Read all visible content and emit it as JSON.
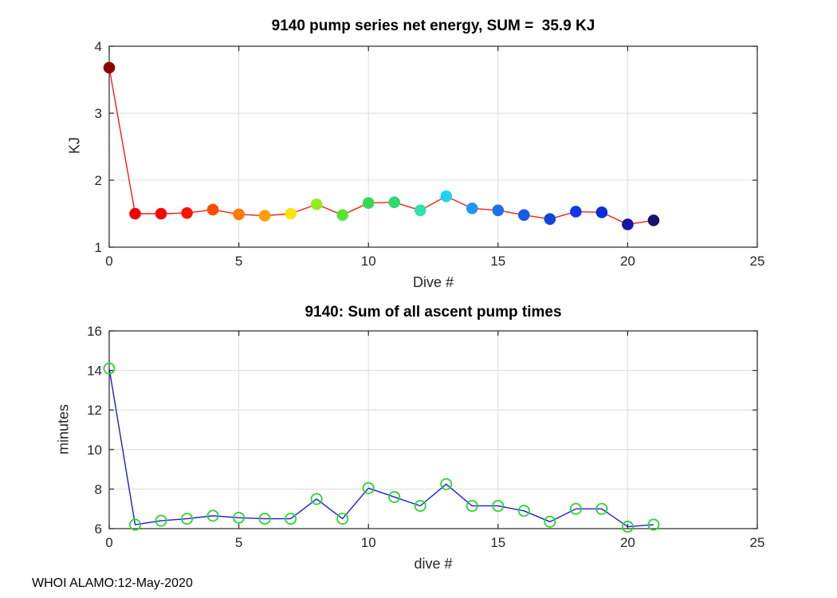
{
  "figure": {
    "background": "#FFFFFF",
    "footer": "WHOI ALAMO:12-May-2020"
  },
  "style": {
    "axis_color": "#262626",
    "grid_color": "#DCDCDC",
    "tick_label_color": "#262626",
    "tick_font_size": 17
  },
  "chart_data": [
    {
      "type": "line",
      "title": "9140 pump series net energy, SUM =  35.9 KJ",
      "xlabel": "Dive #",
      "ylabel": "KJ",
      "xlim": [
        0,
        25
      ],
      "ylim": [
        1,
        4
      ],
      "xticks": [
        0,
        5,
        10,
        15,
        20,
        25
      ],
      "yticks": [
        1,
        2,
        3,
        4
      ],
      "grid": true,
      "legend": "none",
      "x": [
        0,
        1,
        2,
        3,
        4,
        5,
        6,
        7,
        8,
        9,
        10,
        11,
        12,
        13,
        14,
        15,
        16,
        17,
        18,
        19,
        20,
        21
      ],
      "values": [
        3.68,
        1.5,
        1.5,
        1.51,
        1.56,
        1.49,
        1.47,
        1.5,
        1.64,
        1.48,
        1.66,
        1.67,
        1.55,
        1.76,
        1.58,
        1.55,
        1.48,
        1.42,
        1.53,
        1.52,
        1.34,
        1.4
      ],
      "line_color": "#F21D14",
      "line_width": 1.4,
      "marker_style": "filled",
      "marker_radius": 7.3,
      "marker_colors": [
        "#900000",
        "#EE0000",
        "#F90400",
        "#FD1200",
        "#FF4A00",
        "#FF7A00",
        "#FF9E00",
        "#F8E410",
        "#97E822",
        "#55E42D",
        "#34DB52",
        "#2FDA70",
        "#2BE2AA",
        "#1FD2F0",
        "#2097F2",
        "#1C70E9",
        "#1659EC",
        "#0D44E0",
        "#1138E6",
        "#0C2ED6",
        "#1418AC",
        "#13126D"
      ]
    },
    {
      "type": "line",
      "title": "9140: Sum of all ascent pump times",
      "xlabel": "dive #",
      "ylabel": "minutes",
      "xlim": [
        0,
        25
      ],
      "ylim": [
        6,
        16
      ],
      "xticks": [
        0,
        5,
        10,
        15,
        20,
        25
      ],
      "yticks": [
        6,
        8,
        10,
        12,
        14,
        16
      ],
      "grid": true,
      "legend": "none",
      "x": [
        0,
        1,
        2,
        3,
        4,
        5,
        6,
        7,
        8,
        9,
        10,
        11,
        12,
        13,
        14,
        15,
        16,
        17,
        18,
        19,
        20,
        21
      ],
      "values": [
        14.1,
        6.2,
        6.4,
        6.5,
        6.65,
        6.55,
        6.5,
        6.5,
        7.5,
        6.5,
        8.05,
        7.6,
        7.15,
        8.25,
        7.15,
        7.15,
        6.9,
        6.35,
        7.0,
        7.0,
        6.1,
        6.2
      ],
      "line_color": "#1C1CD8",
      "line_width": 1.4,
      "marker_style": "open",
      "marker_radius": 6.6,
      "marker_color": "#2BD42B",
      "marker_stroke_width": 1.8
    }
  ]
}
